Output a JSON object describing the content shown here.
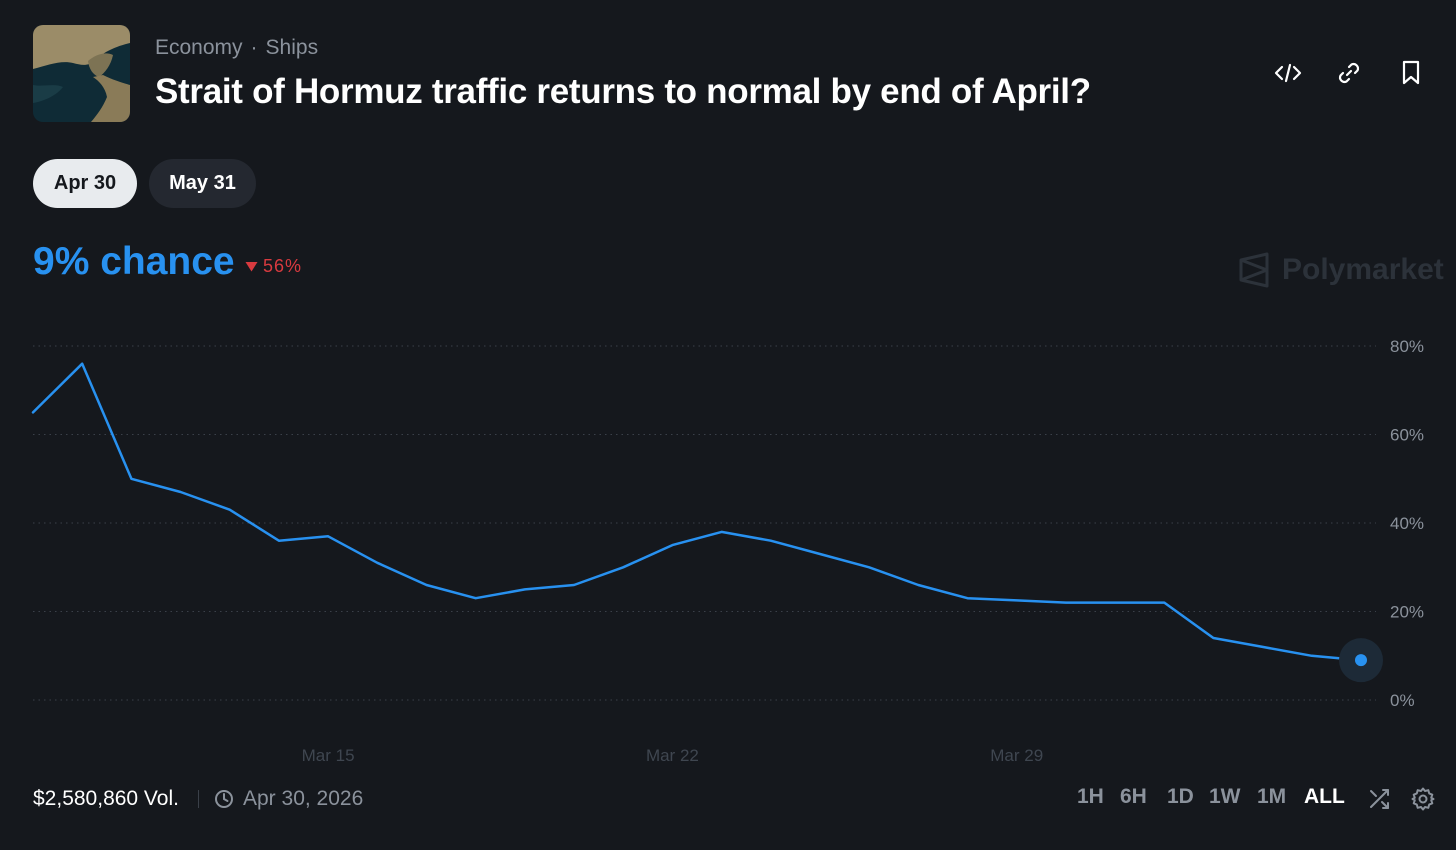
{
  "header": {
    "categories": [
      "Economy",
      "Ships"
    ],
    "separator": "·",
    "title": "Strait of Hormuz traffic returns to normal by end of April?"
  },
  "header_actions": [
    "embed-code-icon",
    "link-icon",
    "bookmark-icon"
  ],
  "date_tabs": [
    {
      "label": "Apr 30",
      "active": true
    },
    {
      "label": "May 31",
      "active": false
    }
  ],
  "summary": {
    "chance_label": "9% chance",
    "change_label": "56%",
    "change_direction": "down"
  },
  "watermark": {
    "text": "Polymarket"
  },
  "colors": {
    "background": "#15181d",
    "line": "#2891f0",
    "negative": "#d83a3f",
    "muted_text": "#8b929c"
  },
  "chart_data": {
    "type": "line",
    "x": [
      "Mar 9",
      "Mar 10",
      "Mar 11",
      "Mar 12",
      "Mar 13",
      "Mar 14",
      "Mar 15",
      "Mar 16",
      "Mar 17",
      "Mar 18",
      "Mar 19",
      "Mar 20",
      "Mar 21",
      "Mar 22",
      "Mar 23",
      "Mar 24",
      "Mar 25",
      "Mar 26",
      "Mar 27",
      "Mar 28",
      "Mar 29",
      "Mar 30",
      "Mar 31",
      "Apr 1",
      "Apr 2",
      "Apr 3",
      "Apr 4",
      "Apr 5"
    ],
    "series": [
      {
        "values": [
          65,
          76,
          50,
          47,
          43,
          36,
          37,
          31,
          26,
          23,
          25,
          26,
          30,
          35,
          38,
          36,
          33,
          30,
          26,
          23,
          22.5,
          22,
          22,
          22,
          14,
          12,
          10,
          9
        ]
      }
    ],
    "y_ticks": [
      0,
      20,
      40,
      60,
      80
    ],
    "y_tick_suffix": "%",
    "ylim": [
      0,
      80
    ],
    "x_tick_labels": [
      "Mar 15",
      "Mar 22",
      "Mar 29"
    ],
    "grid": "horizontal-dotted",
    "current_value": 9
  },
  "footer": {
    "volume": "$2,580,860 Vol.",
    "end_date": "Apr 30, 2026",
    "ranges": [
      {
        "label": "1H",
        "active": false
      },
      {
        "label": "6H",
        "active": false
      },
      {
        "label": "1D",
        "active": false
      },
      {
        "label": "1W",
        "active": false
      },
      {
        "label": "1M",
        "active": false
      },
      {
        "label": "ALL",
        "active": true
      }
    ]
  }
}
